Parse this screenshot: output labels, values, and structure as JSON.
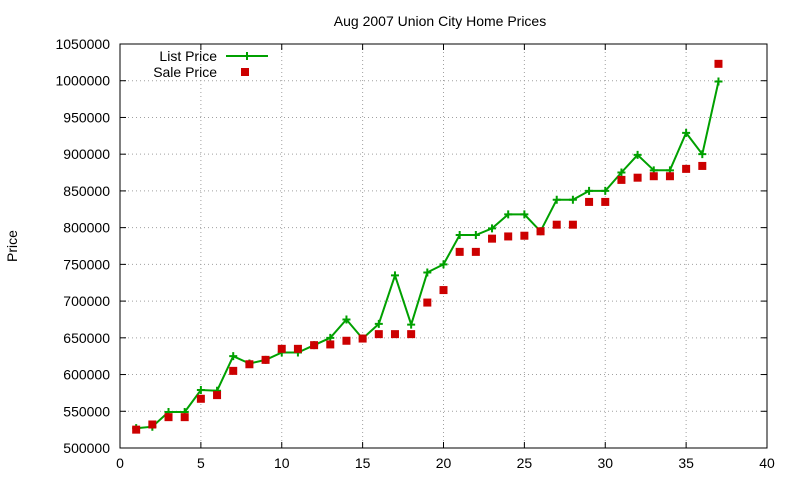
{
  "chart_data": {
    "type": "line",
    "title": "Aug 2007 Union City Home Prices",
    "xlabel": "",
    "ylabel": "Price",
    "xlim": [
      0,
      40
    ],
    "ylim": [
      500000,
      1050000
    ],
    "xticks": [
      "0",
      "5",
      "10",
      "15",
      "20",
      "25",
      "30",
      "35",
      "40"
    ],
    "yticks": [
      "500000",
      "550000",
      "600000",
      "650000",
      "700000",
      "750000",
      "800000",
      "850000",
      "900000",
      "950000",
      "1000000",
      "1050000"
    ],
    "grid": true,
    "legend_position": "top-left",
    "x": [
      1,
      2,
      3,
      4,
      5,
      6,
      7,
      8,
      9,
      10,
      11,
      12,
      13,
      14,
      15,
      16,
      17,
      18,
      19,
      20,
      21,
      22,
      23,
      24,
      25,
      26,
      27,
      28,
      29,
      30,
      31,
      32,
      33,
      34,
      35,
      36,
      37
    ],
    "series": [
      {
        "name": "List Price",
        "style": "line-points",
        "color": "#00a000",
        "values": [
          527000,
          529000,
          549000,
          549000,
          579000,
          578000,
          625000,
          615000,
          620000,
          630000,
          630000,
          640000,
          650000,
          675000,
          649000,
          669000,
          735000,
          668000,
          739000,
          750000,
          790000,
          790000,
          799000,
          818000,
          818000,
          795000,
          838000,
          838000,
          850000,
          850000,
          875000,
          899000,
          878000,
          878000,
          929000,
          900000,
          999000
        ]
      },
      {
        "name": "Sale Price",
        "style": "points",
        "color": "#cc0000",
        "values": [
          525000,
          532000,
          542000,
          542000,
          567000,
          572000,
          605000,
          614000,
          620000,
          635000,
          635000,
          640000,
          641000,
          646000,
          649000,
          655000,
          655000,
          655000,
          698000,
          715000,
          767000,
          767000,
          785000,
          788000,
          789000,
          795000,
          804000,
          804000,
          835000,
          835000,
          865000,
          868000,
          870000,
          870000,
          880000,
          884000,
          1023000
        ]
      }
    ]
  }
}
